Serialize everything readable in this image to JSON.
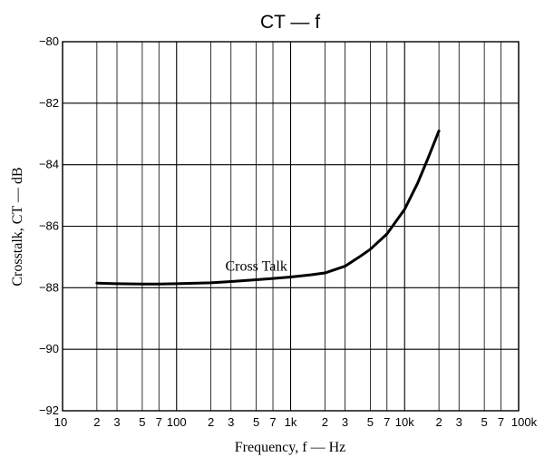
{
  "chart_data": {
    "type": "line",
    "title": "CT — f",
    "xlabel": "Frequency, f — Hz",
    "ylabel": "Crosstalk, CT — dB",
    "x_scale": "log",
    "xlim": [
      10,
      100000
    ],
    "ylim": [
      -92,
      -80
    ],
    "grid": true,
    "x_ticks": [
      {
        "v": 10,
        "label": "10"
      },
      {
        "v": 20,
        "label": "2"
      },
      {
        "v": 30,
        "label": "3"
      },
      {
        "v": 50,
        "label": "5"
      },
      {
        "v": 70,
        "label": "7"
      },
      {
        "v": 100,
        "label": "100"
      },
      {
        "v": 200,
        "label": "2"
      },
      {
        "v": 300,
        "label": "3"
      },
      {
        "v": 500,
        "label": "5"
      },
      {
        "v": 700,
        "label": "7"
      },
      {
        "v": 1000,
        "label": "1k"
      },
      {
        "v": 2000,
        "label": "2"
      },
      {
        "v": 3000,
        "label": "3"
      },
      {
        "v": 5000,
        "label": "5"
      },
      {
        "v": 7000,
        "label": "7"
      },
      {
        "v": 10000,
        "label": "10k"
      },
      {
        "v": 20000,
        "label": "2"
      },
      {
        "v": 30000,
        "label": "3"
      },
      {
        "v": 50000,
        "label": "5"
      },
      {
        "v": 70000,
        "label": "7"
      },
      {
        "v": 100000,
        "label": "100k"
      }
    ],
    "y_ticks": [
      {
        "v": -80,
        "label": "−80"
      },
      {
        "v": -82,
        "label": "−82"
      },
      {
        "v": -84,
        "label": "−84"
      },
      {
        "v": -86,
        "label": "−86"
      },
      {
        "v": -88,
        "label": "−88"
      },
      {
        "v": -90,
        "label": "−90"
      },
      {
        "v": -92,
        "label": "−92"
      }
    ],
    "series": [
      {
        "name": "Cross Talk",
        "x": [
          20,
          30,
          50,
          70,
          100,
          200,
          300,
          500,
          700,
          1000,
          1500,
          2000,
          3000,
          4000,
          5000,
          7000,
          10000,
          13000,
          16000,
          20000
        ],
        "y": [
          -87.85,
          -87.87,
          -87.88,
          -87.88,
          -87.87,
          -87.84,
          -87.8,
          -87.74,
          -87.7,
          -87.65,
          -87.58,
          -87.52,
          -87.3,
          -87.0,
          -86.75,
          -86.25,
          -85.45,
          -84.6,
          -83.8,
          -82.9
        ]
      }
    ],
    "annotations": [
      {
        "text": "Cross Talk",
        "x": 500,
        "y": -87.45
      }
    ]
  }
}
